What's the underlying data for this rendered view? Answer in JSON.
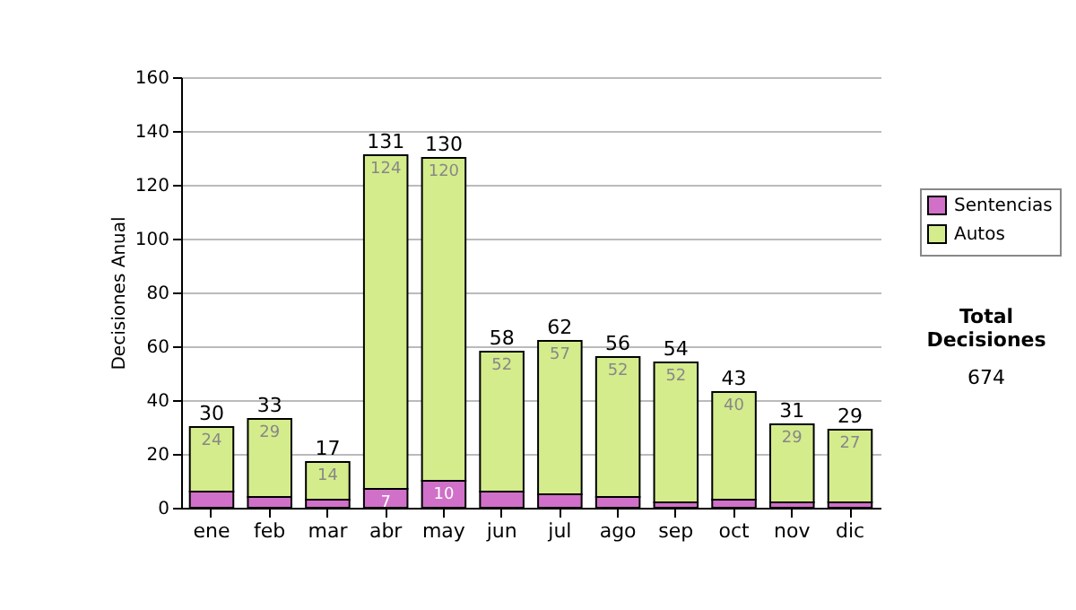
{
  "chart_data": {
    "type": "bar",
    "stacked": true,
    "ylabel": "Decisiones Anual",
    "categories": [
      "ene",
      "feb",
      "mar",
      "abr",
      "may",
      "jun",
      "jul",
      "ago",
      "sep",
      "oct",
      "nov",
      "dic"
    ],
    "series": [
      {
        "name": "Sentencias",
        "color": "#d070c8",
        "values": [
          6,
          4,
          3,
          7,
          10,
          6,
          5,
          4,
          2,
          3,
          2,
          2
        ],
        "value_labels": [
          null,
          null,
          null,
          "7",
          "10",
          null,
          null,
          null,
          null,
          null,
          null,
          null
        ]
      },
      {
        "name": "Autos",
        "color": "#d4ec8c",
        "values": [
          24,
          29,
          14,
          124,
          120,
          52,
          57,
          52,
          52,
          40,
          29,
          27
        ],
        "value_labels": [
          "24",
          "29",
          "14",
          "124",
          "120",
          "52",
          "57",
          "52",
          "52",
          "40",
          "29",
          "27"
        ]
      }
    ],
    "totals": [
      "30",
      "33",
      "17",
      "131",
      "130",
      "58",
      "62",
      "56",
      "54",
      "43",
      "31",
      "29"
    ],
    "ylim": [
      0,
      160
    ],
    "yticks": [
      0,
      20,
      40,
      60,
      80,
      100,
      120,
      140,
      160
    ],
    "grid": "y",
    "legend": "right",
    "annotations": [
      "Total Decisiones",
      "674"
    ]
  }
}
